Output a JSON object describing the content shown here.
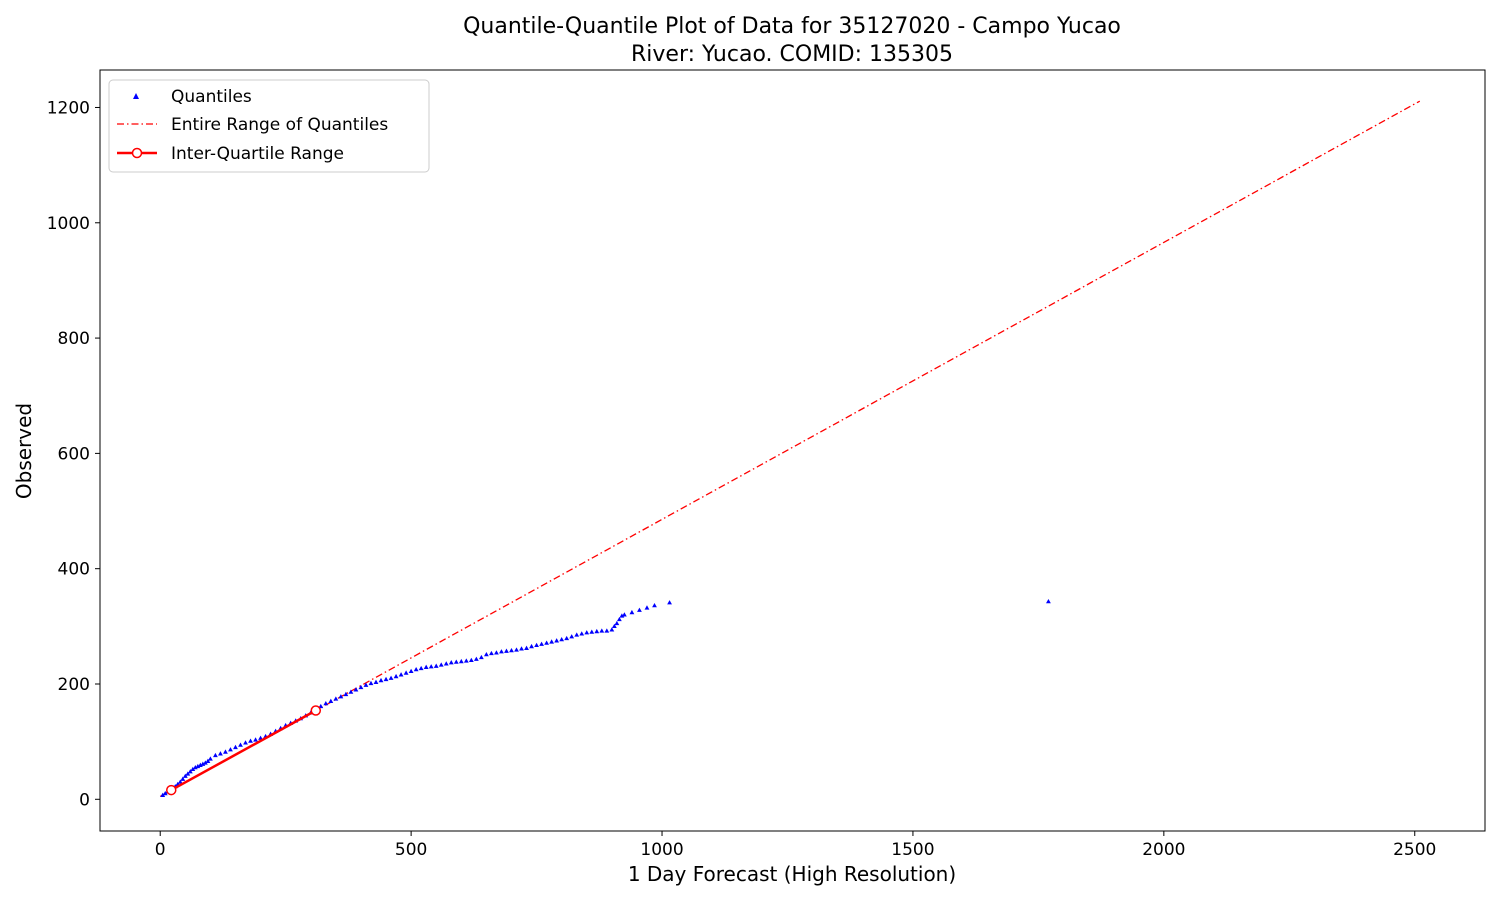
{
  "chart_data": {
    "type": "scatter",
    "title": "Quantile-Quantile Plot of Data for 35127020 - Campo Yucao",
    "subtitle": "River: Yucao. COMID: 135305",
    "xlabel": "1 Day Forecast (High Resolution)",
    "ylabel": "Observed",
    "xlim": [
      -120,
      2640
    ],
    "ylim": [
      -55,
      1265
    ],
    "xticks": [
      0,
      500,
      1000,
      1500,
      2000,
      2500
    ],
    "yticks": [
      0,
      200,
      400,
      600,
      800,
      1000,
      1200
    ],
    "grid": false,
    "legend_position": "top-left",
    "colors": {
      "quantiles": "#0000ff",
      "entire_range": "#ff0000",
      "iqr": "#ff0000",
      "iqr_marker_fill": "#ffffff"
    },
    "series": [
      {
        "name": "Quantiles",
        "style": "triangle-markers",
        "points": [
          [
            5,
            7
          ],
          [
            10,
            10
          ],
          [
            15,
            13
          ],
          [
            20,
            15
          ],
          [
            25,
            18
          ],
          [
            30,
            22
          ],
          [
            35,
            26
          ],
          [
            40,
            30
          ],
          [
            45,
            35
          ],
          [
            50,
            40
          ],
          [
            55,
            44
          ],
          [
            60,
            48
          ],
          [
            65,
            52
          ],
          [
            70,
            55
          ],
          [
            75,
            57
          ],
          [
            80,
            59
          ],
          [
            85,
            61
          ],
          [
            90,
            63
          ],
          [
            95,
            66
          ],
          [
            100,
            70
          ],
          [
            110,
            76
          ],
          [
            120,
            79
          ],
          [
            130,
            82
          ],
          [
            140,
            86
          ],
          [
            150,
            90
          ],
          [
            160,
            94
          ],
          [
            170,
            98
          ],
          [
            180,
            101
          ],
          [
            190,
            103
          ],
          [
            200,
            106
          ],
          [
            210,
            109
          ],
          [
            220,
            113
          ],
          [
            230,
            118
          ],
          [
            240,
            123
          ],
          [
            250,
            128
          ],
          [
            260,
            132
          ],
          [
            270,
            136
          ],
          [
            280,
            140
          ],
          [
            290,
            145
          ],
          [
            300,
            150
          ],
          [
            310,
            155
          ],
          [
            320,
            161
          ],
          [
            330,
            166
          ],
          [
            340,
            170
          ],
          [
            350,
            174
          ],
          [
            360,
            178
          ],
          [
            370,
            182
          ],
          [
            380,
            186
          ],
          [
            390,
            190
          ],
          [
            400,
            194
          ],
          [
            410,
            198
          ],
          [
            420,
            201
          ],
          [
            430,
            203
          ],
          [
            440,
            206
          ],
          [
            450,
            208
          ],
          [
            460,
            210
          ],
          [
            470,
            213
          ],
          [
            480,
            216
          ],
          [
            490,
            219
          ],
          [
            500,
            222
          ],
          [
            510,
            225
          ],
          [
            520,
            227
          ],
          [
            530,
            229
          ],
          [
            540,
            230
          ],
          [
            550,
            231
          ],
          [
            560,
            233
          ],
          [
            570,
            235
          ],
          [
            580,
            237
          ],
          [
            590,
            238
          ],
          [
            600,
            239
          ],
          [
            610,
            240
          ],
          [
            620,
            241
          ],
          [
            630,
            243
          ],
          [
            640,
            246
          ],
          [
            650,
            251
          ],
          [
            660,
            253
          ],
          [
            670,
            254
          ],
          [
            680,
            256
          ],
          [
            690,
            257
          ],
          [
            700,
            258
          ],
          [
            710,
            259
          ],
          [
            720,
            261
          ],
          [
            730,
            262
          ],
          [
            740,
            265
          ],
          [
            750,
            267
          ],
          [
            760,
            269
          ],
          [
            770,
            271
          ],
          [
            780,
            273
          ],
          [
            790,
            275
          ],
          [
            800,
            277
          ],
          [
            810,
            279
          ],
          [
            820,
            282
          ],
          [
            830,
            285
          ],
          [
            840,
            287
          ],
          [
            850,
            289
          ],
          [
            860,
            290
          ],
          [
            870,
            291
          ],
          [
            880,
            292
          ],
          [
            890,
            292
          ],
          [
            900,
            294
          ],
          [
            905,
            300
          ],
          [
            910,
            305
          ],
          [
            915,
            312
          ],
          [
            920,
            318
          ],
          [
            925,
            320
          ],
          [
            940,
            324
          ],
          [
            955,
            328
          ],
          [
            970,
            332
          ],
          [
            985,
            336
          ],
          [
            1015,
            341
          ],
          [
            1770,
            343
          ]
        ]
      },
      {
        "name": "Entire Range of Quantiles",
        "style": "dash-dot-line",
        "points": [
          [
            0,
            5
          ],
          [
            2510,
            1211
          ]
        ]
      },
      {
        "name": "Inter-Quartile Range",
        "style": "solid-line-circle-markers",
        "points": [
          [
            22,
            16
          ],
          [
            310,
            154
          ]
        ]
      }
    ]
  }
}
